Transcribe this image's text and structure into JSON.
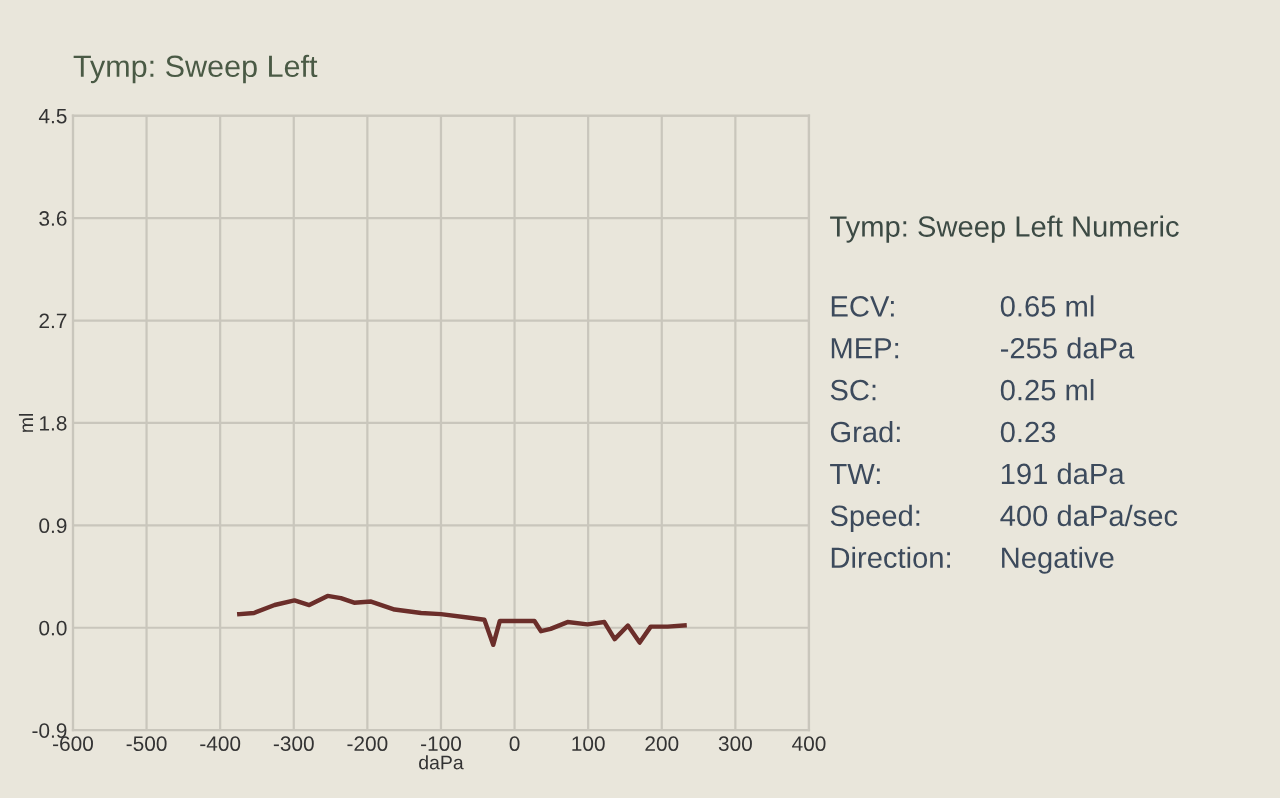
{
  "chart_data": [
    {
      "type": "line",
      "title": "Tymp: Sweep Left",
      "xlabel": "daPa",
      "ylabel": "ml",
      "x": [
        -374,
        -354,
        -326,
        -299,
        -279,
        -254,
        -236,
        -218,
        -195,
        -163,
        -127,
        -100,
        -64,
        -41,
        -29,
        -20,
        9,
        27,
        36,
        49,
        72,
        99,
        122,
        136,
        154,
        170,
        185,
        208,
        231
      ],
      "series": [
        {
          "color": "#6b2e2a",
          "values": [
            0.12,
            0.13,
            0.2,
            0.24,
            0.2,
            0.28,
            0.26,
            0.22,
            0.23,
            0.16,
            0.13,
            0.12,
            0.09,
            0.07,
            -0.15,
            0.06,
            0.06,
            0.06,
            -0.03,
            -0.01,
            0.05,
            0.03,
            0.05,
            -0.1,
            0.02,
            -0.13,
            0.01,
            0.01,
            0.02
          ]
        }
      ],
      "xlim": [
        -600,
        400
      ],
      "xticks": [
        -600,
        -500,
        -400,
        -300,
        -200,
        -100,
        0,
        100,
        200,
        300,
        400
      ],
      "ylim": [
        -0.9,
        4.5
      ],
      "yticks": [
        -0.9,
        {
          "value": 0,
          "label": "0.0"
        },
        0.9,
        1.8,
        2.7,
        3.6,
        4.5
      ],
      "grid": true,
      "legend": false,
      "marker": "none",
      "line_style": "solid"
    },
    {
      "type": "other",
      "title": "Tymp: Sweep Left Numeric",
      "annotations": [
        "ECV:",
        "0.65 ml",
        "MEP:",
        "-255 daPa",
        "SC:",
        "0.25 ml",
        "Grad:",
        "0.23",
        "TW:",
        "191 daPa",
        "Speed:",
        "400 daPa/sec",
        "Direction:",
        "Negative"
      ]
    }
  ]
}
